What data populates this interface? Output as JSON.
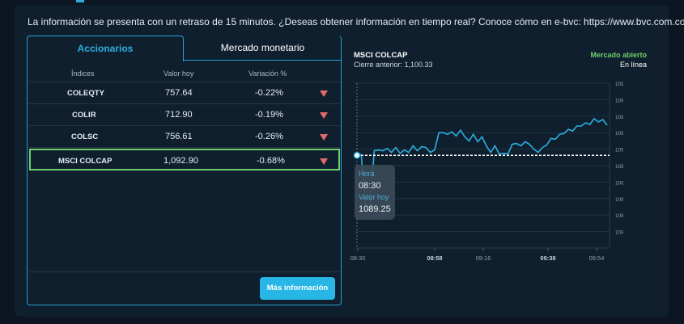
{
  "notice": "La información se presenta con un retraso de 15 minutos. ¿Deseas obtener información en tiempo real? Conoce cómo en e-bvc: https://www.bvc.com.co/e-bvc",
  "tabs": [
    {
      "label": "Accionarios",
      "active": true
    },
    {
      "label": "Mercado monetario",
      "active": false
    }
  ],
  "table": {
    "headers": [
      "Índices",
      "Valor hoy",
      "Variación %"
    ],
    "rows": [
      {
        "name": "COLEQTY",
        "value": "757.64",
        "change": "-0.22%",
        "trend": "down"
      },
      {
        "name": "COLIR",
        "value": "712.90",
        "change": "-0.19%",
        "trend": "down"
      },
      {
        "name": "COLSC",
        "value": "756.61",
        "change": "-0.26%",
        "trend": "down"
      },
      {
        "name": "MSCI COLCAP",
        "value": "1,092.90",
        "change": "-0.68%",
        "trend": "down",
        "selected": true
      }
    ]
  },
  "more_button": "Más información",
  "chart_header": {
    "title": "MSCI COLCAP",
    "previous_close": "Cierre anterior: 1,100.33",
    "market_status": "Mercado abierto",
    "live": "En línea"
  },
  "tooltip": {
    "time_label": "Hora",
    "time_value": "08:30",
    "value_label": "Valor hoy",
    "value_value": "1089.25"
  },
  "colors": {
    "accent": "#2bb0e0",
    "down": "#e06b6b",
    "open": "#6fcf6a",
    "line": "#2bb0e0"
  },
  "chart_data": {
    "type": "line",
    "ylim": [
      1078,
      1098
    ],
    "y_ticks": [
      "1098.00",
      "1096.00",
      "1094.00",
      "1092.00",
      "1090.00",
      "1088.00",
      "1086.00",
      "1084.00",
      "1082.00",
      "1080.00"
    ],
    "x_ticks": [
      "08:30",
      "08:58",
      "09:16",
      "09:38",
      "09:54"
    ],
    "reference_value": 1089.25,
    "series": [
      {
        "values": [
          1089.25,
          1089.3,
          1082.6,
          1082.6,
          1089.8,
          1089.9,
          1089.8,
          1090.1,
          1089.6,
          1090.2,
          1089.5,
          1089.9,
          1089.6,
          1090.4,
          1089.8,
          1090.3,
          1090.2,
          1089.6,
          1089.9,
          1092.0,
          1092.0,
          1091.8,
          1092.1,
          1091.6,
          1092.3,
          1091.5,
          1091.0,
          1091.8,
          1090.9,
          1091.5,
          1090.4,
          1089.6,
          1090.4,
          1089.4,
          1089.5,
          1089.4,
          1090.6,
          1090.7,
          1090.4,
          1090.9,
          1090.6,
          1090.0,
          1089.6,
          1090.2,
          1090.5,
          1091.3,
          1091.2,
          1091.8,
          1091.9,
          1092.4,
          1092.2,
          1092.8,
          1092.8,
          1093.2,
          1093.0,
          1093.7,
          1093.3,
          1093.6,
          1092.9
        ]
      }
    ]
  }
}
